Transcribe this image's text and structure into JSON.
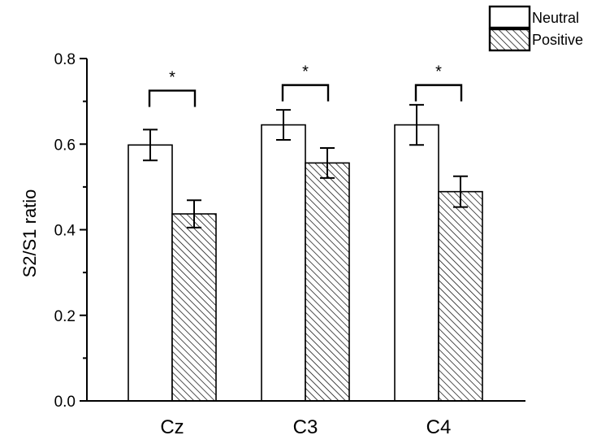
{
  "chart_data": {
    "type": "bar",
    "title": "",
    "xlabel": "",
    "ylabel": "S2/S1 ratio",
    "categories": [
      "Cz",
      "C3",
      "C4"
    ],
    "ylim": [
      0,
      0.8
    ],
    "yticks": [
      0.0,
      0.2,
      0.4,
      0.6,
      0.8
    ],
    "ytick_labels": [
      "0.0",
      "0.2",
      "0.4",
      "0.6",
      "0.8"
    ],
    "series": [
      {
        "name": "Neutral",
        "values": [
          0.598,
          0.645,
          0.645
        ],
        "errors": [
          0.036,
          0.035,
          0.047
        ],
        "fill": "white"
      },
      {
        "name": "Positive",
        "values": [
          0.437,
          0.556,
          0.489
        ],
        "errors": [
          0.032,
          0.035,
          0.036
        ],
        "fill": "hatched"
      }
    ],
    "significance": [
      "*",
      "*",
      "*"
    ],
    "significance_bracket_y": [
      0.725,
      0.738,
      0.738
    ],
    "legend": {
      "placement": "top-right",
      "entries": [
        "Neutral",
        "Positive"
      ]
    },
    "grid": false,
    "colors": {
      "bar_stroke": "#000000",
      "neutral_fill": "#ffffff",
      "hatch": "#000000"
    }
  }
}
